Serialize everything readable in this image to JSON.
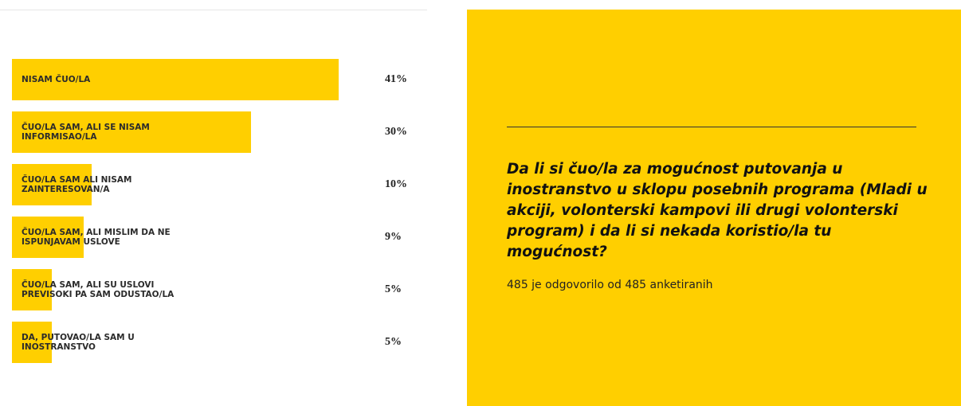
{
  "chart_data": {
    "type": "bar",
    "orientation": "horizontal",
    "color": "#ffcf00",
    "categories": [
      "NISAM ČUO/LA",
      "ČUO/LA SAM, ALI SE NISAM INFORMISAO/LA",
      "ČUO/LA SAM ALI NISAM ZAINTERESOVAN/A",
      "ČUO/LA SAM, ALI MISLIM DA NE ISPUNJAVAM USLOVE",
      "ČUO/LA SAM, ALI SU USLOVI PREVISOKI PA SAM ODUSTAO/LA",
      "DA, PUTOVAO/LA SAM U INOSTRANSTVO"
    ],
    "values": [
      41,
      30,
      10,
      9,
      5,
      5
    ],
    "value_labels": [
      "41%",
      "30%",
      "10%",
      "9%",
      "5%",
      "5%"
    ]
  },
  "panel": {
    "question": "Da li si čuo/la za mogućnost putovanja u inostranstvo u sklopu posebnih programa (Mladi u akciji, volonterski kampovi ili drugi volonterski program) i da li si nekada koristio/la tu mogućnost?",
    "subtitle": "485 je odgovorilo od 485 anketiranih"
  }
}
